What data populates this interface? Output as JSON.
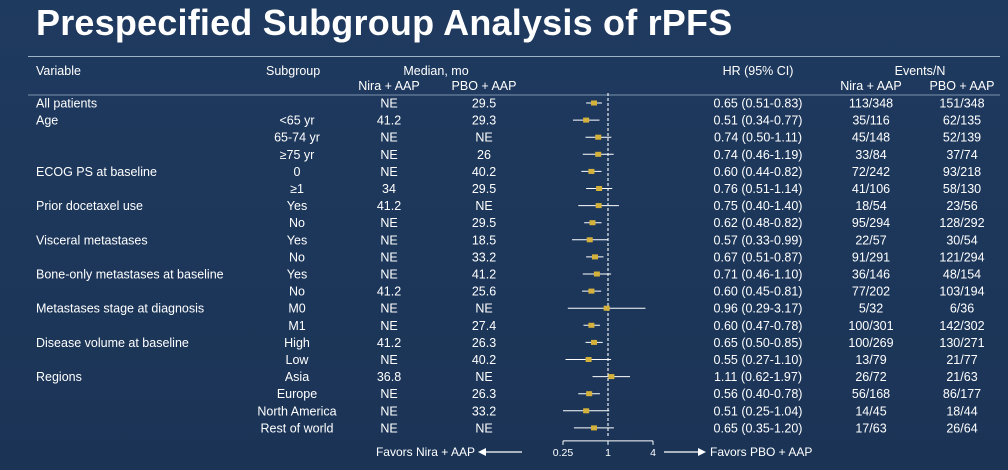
{
  "title": "Prespecified Subgroup Analysis of rPFS",
  "headers": {
    "variable": "Variable",
    "subgroup": "Subgroup",
    "median": "Median, mo",
    "median_nira": "Nira + AAP",
    "median_pbo": "PBO + AAP",
    "hr": "HR (95% CI)",
    "events": "Events/N",
    "events_nira": "Nira + AAP",
    "events_pbo": "PBO + AAP"
  },
  "footer": {
    "favors_left": "Favors Nira + AAP",
    "favors_right": "Favors PBO + AAP"
  },
  "colors": {
    "background": "#1d3557",
    "marker": "#d4b13a",
    "line": "#ffffff"
  },
  "chart_data": {
    "type": "forest",
    "x_scale": "log",
    "xlim": [
      0.25,
      4
    ],
    "x_ticks": [
      "0.25",
      "1",
      "4"
    ],
    "reference_line": 1,
    "rows": [
      {
        "variable": "All patients",
        "subgroup": "",
        "median_nira": "NE",
        "median_pbo": "29.5",
        "hr_text": "0.65 (0.51-0.83)",
        "hr": 0.65,
        "lo": 0.51,
        "hi": 0.83,
        "events_nira": "113/348",
        "events_pbo": "151/348"
      },
      {
        "variable": "Age",
        "subgroup": "<65 yr",
        "median_nira": "41.2",
        "median_pbo": "29.3",
        "hr_text": "0.51 (0.34-0.77)",
        "hr": 0.51,
        "lo": 0.34,
        "hi": 0.77,
        "events_nira": "35/116",
        "events_pbo": "62/135"
      },
      {
        "variable": "",
        "subgroup": "65-74 yr",
        "median_nira": "NE",
        "median_pbo": "NE",
        "hr_text": "0.74 (0.50-1.11)",
        "hr": 0.74,
        "lo": 0.5,
        "hi": 1.11,
        "events_nira": "45/148",
        "events_pbo": "52/139"
      },
      {
        "variable": "",
        "subgroup": "≥75 yr",
        "median_nira": "NE",
        "median_pbo": "26",
        "hr_text": "0.74 (0.46-1.19)",
        "hr": 0.74,
        "lo": 0.46,
        "hi": 1.19,
        "events_nira": "33/84",
        "events_pbo": "37/74"
      },
      {
        "variable": "ECOG PS at baseline",
        "subgroup": "0",
        "median_nira": "NE",
        "median_pbo": "40.2",
        "hr_text": "0.60 (0.44-0.82)",
        "hr": 0.6,
        "lo": 0.44,
        "hi": 0.82,
        "events_nira": "72/242",
        "events_pbo": "93/218"
      },
      {
        "variable": "",
        "subgroup": "≥1",
        "median_nira": "34",
        "median_pbo": "29.5",
        "hr_text": "0.76 (0.51-1.14)",
        "hr": 0.76,
        "lo": 0.51,
        "hi": 1.14,
        "events_nira": "41/106",
        "events_pbo": "58/130"
      },
      {
        "variable": "Prior docetaxel use",
        "subgroup": "Yes",
        "median_nira": "41.2",
        "median_pbo": "NE",
        "hr_text": "0.75 (0.40-1.40)",
        "hr": 0.75,
        "lo": 0.4,
        "hi": 1.4,
        "events_nira": "18/54",
        "events_pbo": "23/56"
      },
      {
        "variable": "",
        "subgroup": "No",
        "median_nira": "NE",
        "median_pbo": "29.5",
        "hr_text": "0.62 (0.48-0.82)",
        "hr": 0.62,
        "lo": 0.48,
        "hi": 0.82,
        "events_nira": "95/294",
        "events_pbo": "128/292"
      },
      {
        "variable": "Visceral metastases",
        "subgroup": "Yes",
        "median_nira": "NE",
        "median_pbo": "18.5",
        "hr_text": "0.57 (0.33-0.99)",
        "hr": 0.57,
        "lo": 0.33,
        "hi": 0.99,
        "events_nira": "22/57",
        "events_pbo": "30/54"
      },
      {
        "variable": "",
        "subgroup": "No",
        "median_nira": "NE",
        "median_pbo": "33.2",
        "hr_text": "0.67 (0.51-0.87)",
        "hr": 0.67,
        "lo": 0.51,
        "hi": 0.87,
        "events_nira": "91/291",
        "events_pbo": "121/294"
      },
      {
        "variable": "Bone-only metastases at baseline",
        "subgroup": "Yes",
        "median_nira": "NE",
        "median_pbo": "41.2",
        "hr_text": "0.71 (0.46-1.10)",
        "hr": 0.71,
        "lo": 0.46,
        "hi": 1.1,
        "events_nira": "36/146",
        "events_pbo": "48/154"
      },
      {
        "variable": "",
        "subgroup": "No",
        "median_nira": "41.2",
        "median_pbo": "25.6",
        "hr_text": "0.60 (0.45-0.81)",
        "hr": 0.6,
        "lo": 0.45,
        "hi": 0.81,
        "events_nira": "77/202",
        "events_pbo": "103/194"
      },
      {
        "variable": "Metastases stage at diagnosis",
        "subgroup": "M0",
        "median_nira": "NE",
        "median_pbo": "NE",
        "hr_text": "0.96 (0.29-3.17)",
        "hr": 0.96,
        "lo": 0.29,
        "hi": 3.17,
        "events_nira": "5/32",
        "events_pbo": "6/36"
      },
      {
        "variable": "",
        "subgroup": "M1",
        "median_nira": "NE",
        "median_pbo": "27.4",
        "hr_text": "0.60 (0.47-0.78)",
        "hr": 0.6,
        "lo": 0.47,
        "hi": 0.78,
        "events_nira": "100/301",
        "events_pbo": "142/302"
      },
      {
        "variable": "Disease volume at baseline",
        "subgroup": "High",
        "median_nira": "41.2",
        "median_pbo": "26.3",
        "hr_text": "0.65 (0.50-0.85)",
        "hr": 0.65,
        "lo": 0.5,
        "hi": 0.85,
        "events_nira": "100/269",
        "events_pbo": "130/271"
      },
      {
        "variable": "",
        "subgroup": "Low",
        "median_nira": "NE",
        "median_pbo": "40.2",
        "hr_text": "0.55 (0.27-1.10)",
        "hr": 0.55,
        "lo": 0.27,
        "hi": 1.1,
        "events_nira": "13/79",
        "events_pbo": "21/77"
      },
      {
        "variable": "Regions",
        "subgroup": "Asia",
        "median_nira": "36.8",
        "median_pbo": "NE",
        "hr_text": "1.11 (0.62-1.97)",
        "hr": 1.11,
        "lo": 0.62,
        "hi": 1.97,
        "events_nira": "26/72",
        "events_pbo": "21/63"
      },
      {
        "variable": "",
        "subgroup": "Europe",
        "median_nira": "NE",
        "median_pbo": "26.3",
        "hr_text": "0.56 (0.40-0.78)",
        "hr": 0.56,
        "lo": 0.4,
        "hi": 0.78,
        "events_nira": "56/168",
        "events_pbo": "86/177"
      },
      {
        "variable": "",
        "subgroup": "North America",
        "median_nira": "NE",
        "median_pbo": "33.2",
        "hr_text": "0.51 (0.25-1.04)",
        "hr": 0.51,
        "lo": 0.25,
        "hi": 1.04,
        "events_nira": "14/45",
        "events_pbo": "18/44"
      },
      {
        "variable": "",
        "subgroup": "Rest of world",
        "median_nira": "NE",
        "median_pbo": "NE",
        "hr_text": "0.65 (0.35-1.20)",
        "hr": 0.65,
        "lo": 0.35,
        "hi": 1.2,
        "events_nira": "17/63",
        "events_pbo": "26/64"
      }
    ]
  }
}
